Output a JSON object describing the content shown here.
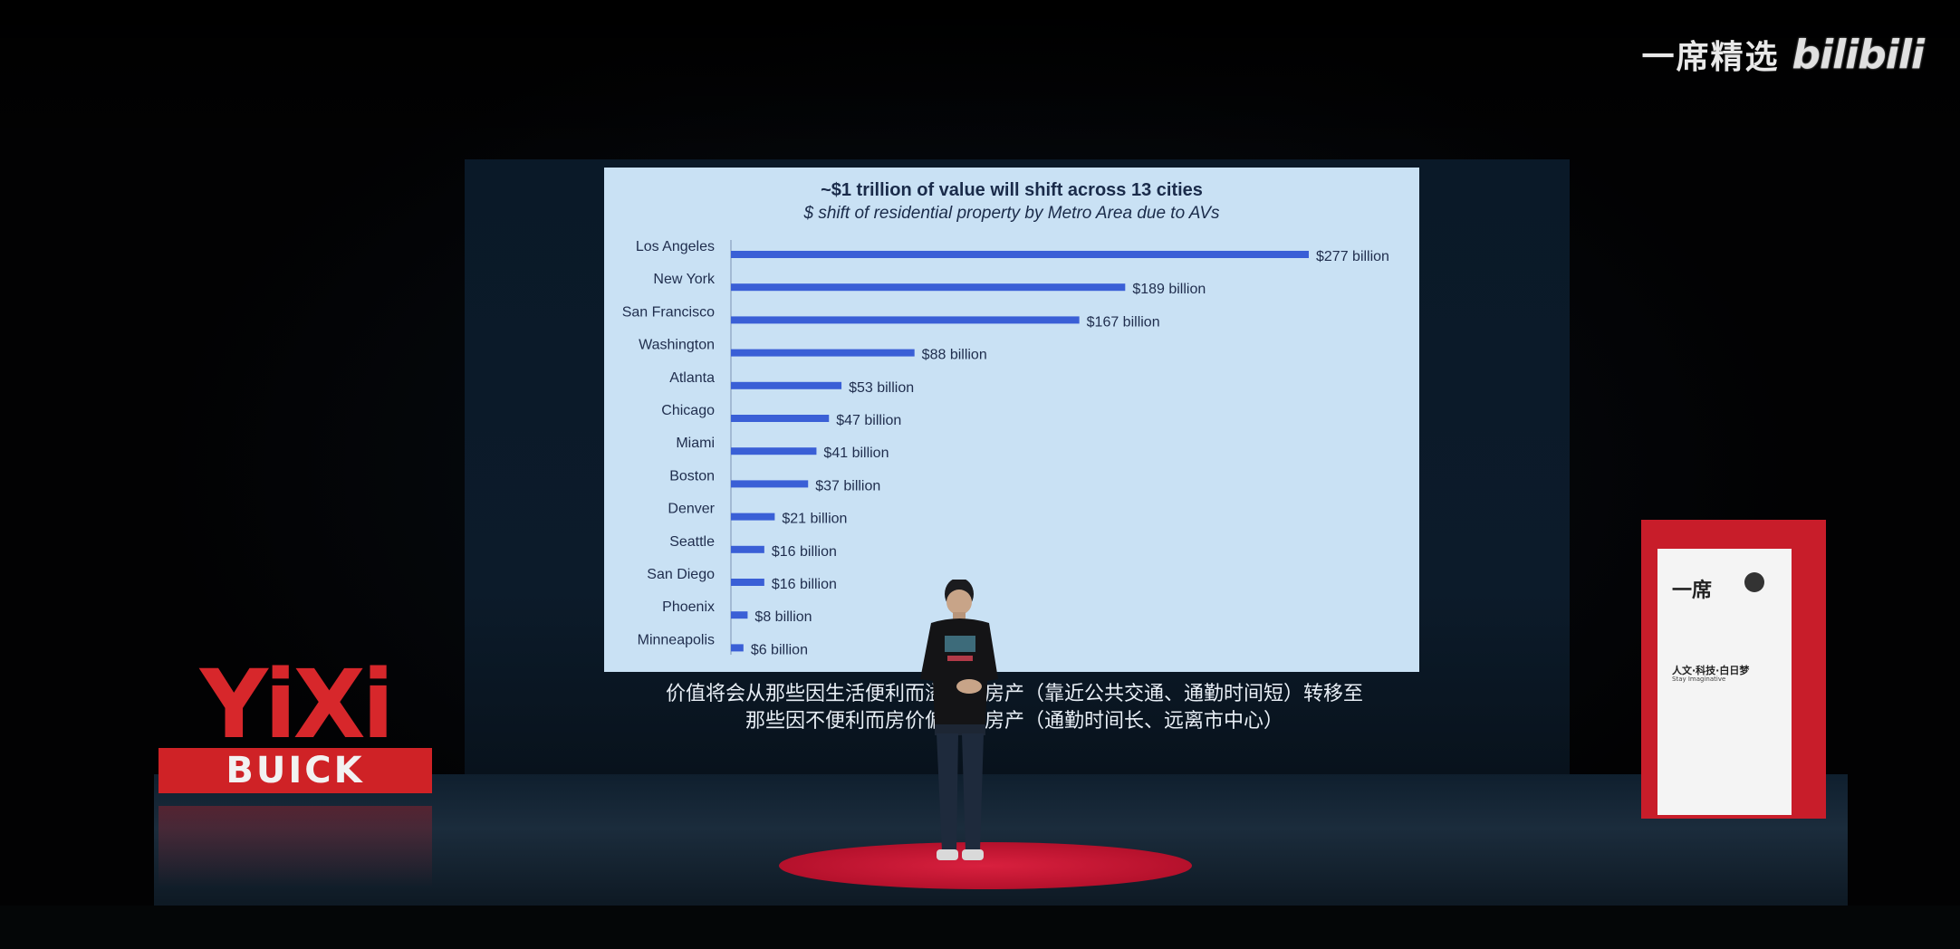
{
  "watermark": {
    "brand": "一席精选",
    "site": "bilibili"
  },
  "slide": {
    "title": "~$1 trillion of value will shift across 13 cities",
    "subtitle": "$ shift of residential property by Metro Area due to AVs"
  },
  "chart_data": {
    "type": "bar",
    "orientation": "horizontal",
    "title": "~$1 trillion of value will shift across 13 cities",
    "subtitle": "$ shift of residential property by Metro Area due to AVs",
    "categories": [
      "Los Angeles",
      "New York",
      "San Francisco",
      "Washington",
      "Atlanta",
      "Chicago",
      "Miami",
      "Boston",
      "Denver",
      "Seattle",
      "San Diego",
      "Phoenix",
      "Minneapolis"
    ],
    "values": [
      277,
      189,
      167,
      88,
      53,
      47,
      41,
      37,
      21,
      16,
      16,
      8,
      6
    ],
    "data_labels": [
      "$277 billion",
      "$189 billion",
      "$167 billion",
      "$88 billion",
      "$53 billion",
      "$47 billion",
      "$41 billion",
      "$37 billion",
      "$21 billion",
      "$16 billion",
      "$16 billion",
      "$8 billion",
      "$6 billion"
    ],
    "xlim": [
      0,
      277
    ],
    "grid": false,
    "bar_color": "#3a5fd6"
  },
  "captions": {
    "line1": "价值将会从那些因生活便利而溢价的房产（靠近公共交通、通勤时间短）转移至",
    "line2": "那些因不便利而房价偏低的房产（通勤时间长、远离市中心）"
  },
  "stage": {
    "logo_letters": "YiXi",
    "logo_sponsor": "BUICK",
    "banner_logo": "一席",
    "banner_slogan": "人文·科技·白日梦",
    "banner_slogan_en": "Stay Imaginative",
    "carpet_color": "#c8162f",
    "logo_color": "#d7272b"
  }
}
